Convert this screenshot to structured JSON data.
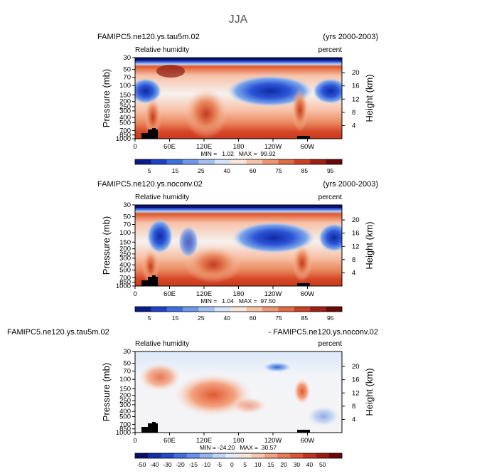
{
  "figure": {
    "title": "JJA",
    "field_label": "Relative humidity",
    "units_label": "percent",
    "left_axis_label": "Pressure (mb)",
    "right_axis_label": "Height (km)"
  },
  "axes": {
    "pressure_ticks": [
      "30",
      "50",
      "70",
      "100",
      "150",
      "200",
      "250",
      "300",
      "400",
      "500",
      "700",
      "850",
      "1000"
    ],
    "height_ticks": [
      "20",
      "16",
      "12",
      "8",
      "4"
    ],
    "lon_ticks": [
      "0",
      "60E",
      "120E",
      "180",
      "120W",
      "60W"
    ]
  },
  "colorbars": {
    "full": [
      "5",
      "15",
      "25",
      "40",
      "60",
      "75",
      "85",
      "95"
    ],
    "diff": [
      "-50",
      "-40",
      "-30",
      "-20",
      "-15",
      "-10",
      "-5",
      "0",
      "5",
      "10",
      "15",
      "20",
      "30",
      "40",
      "50"
    ]
  },
  "colors": {
    "dark_blue": "#08106e",
    "blue": "#2c55d6",
    "light_blue": "#b8d5f5",
    "white": "#f6f1ee",
    "light_red": "#f7c1a8",
    "red": "#e0582d",
    "dark_red": "#7c0a0a"
  },
  "chart_data": [
    {
      "type": "heatmap",
      "case": "FAMIPC5.ne120.ys.tau5m.02",
      "years": "(yrs 2000-2003)",
      "x": "Longitude (0-360)",
      "y": "Pressure (mb), 30-1000",
      "stats": "MIN =   1.02   MAX =  99.92",
      "min": 1.02,
      "max": 99.92,
      "colorbar_levels": [
        5,
        15,
        25,
        40,
        60,
        75,
        85,
        95
      ]
    },
    {
      "type": "heatmap",
      "case": "FAMIPC5.ne120.ys.noconv.02",
      "years": "(yrs 2000-2003)",
      "x": "Longitude (0-360)",
      "y": "Pressure (mb), 30-1000",
      "stats": "MIN =   1.04   MAX =  97.50",
      "min": 1.04,
      "max": 97.5,
      "colorbar_levels": [
        5,
        15,
        25,
        40,
        60,
        75,
        85,
        95
      ]
    },
    {
      "type": "heatmap",
      "case": "FAMIPC5.ne120.ys.tau5m.02",
      "case_b": "- FAMIPC5.ne120.ys.noconv.02",
      "x": "Longitude (0-360)",
      "y": "Pressure (mb), 30-1000",
      "stats": "MIN = -24.20   MAX =  30.57",
      "min": -24.2,
      "max": 30.57,
      "colorbar_levels": [
        -50,
        -40,
        -30,
        -20,
        -15,
        -10,
        -5,
        0,
        5,
        10,
        15,
        20,
        30,
        40,
        50
      ]
    }
  ]
}
